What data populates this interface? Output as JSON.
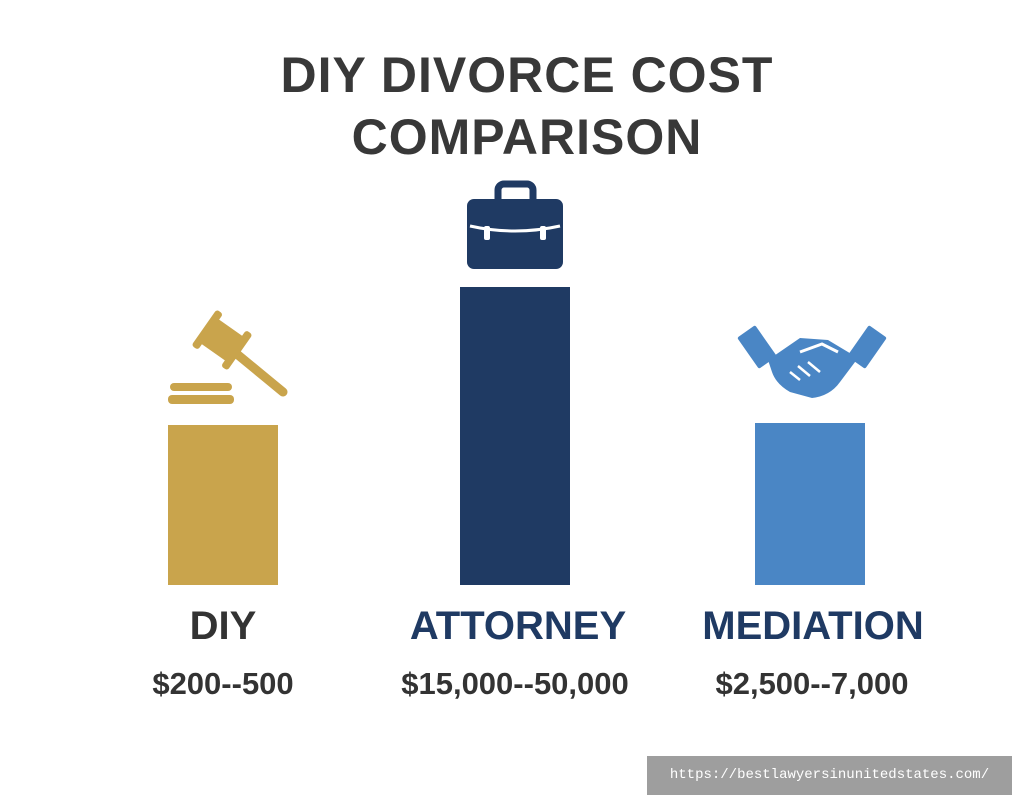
{
  "title": "DIY DIVORCE COST COMPARISON",
  "options": [
    {
      "label": "DIY",
      "cost": "$200--500"
    },
    {
      "label": "ATTORNEY",
      "cost": "$15,000--50,000"
    },
    {
      "label": "MEDIATION",
      "cost": "$2,500--7,000"
    }
  ],
  "watermark": "https://bestlawyersinunitedstates.com/"
}
